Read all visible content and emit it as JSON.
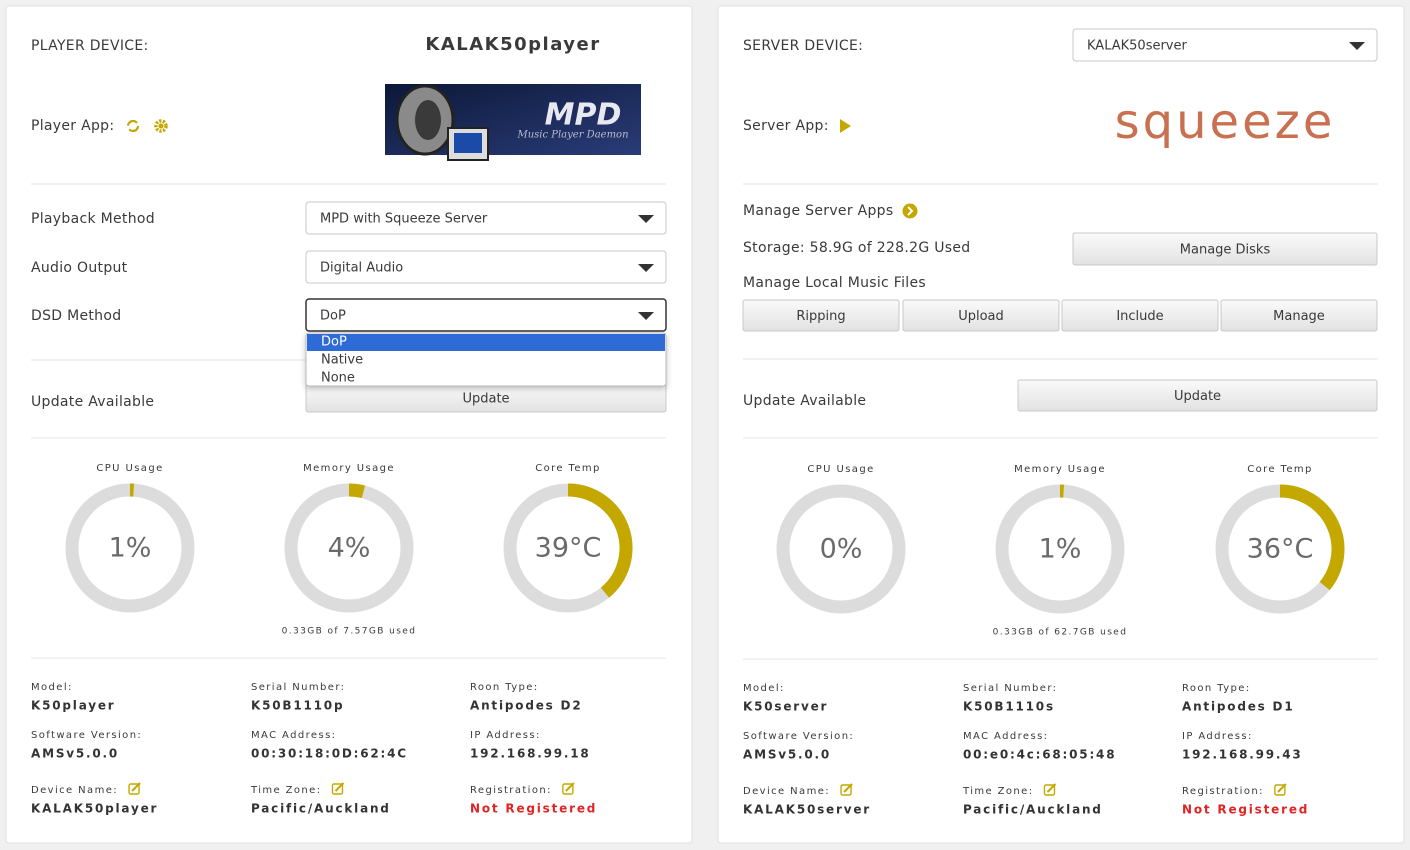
{
  "player": {
    "device_label": "PLAYER DEVICE:",
    "device_name": "KALAK50player",
    "app_label": "Player App:",
    "logo": {
      "title": "MPD",
      "subtitle": "Music Player Daemon"
    },
    "settings": [
      {
        "label": "Playback Method",
        "value": "MPD with Squeeze Server"
      },
      {
        "label": "Audio Output",
        "value": "Digital Audio"
      },
      {
        "label": "DSD Method",
        "value": "DoP"
      }
    ],
    "dropdown_options": [
      "DoP",
      "Native",
      "None"
    ],
    "update_label": "Update Available",
    "update_button": "Update",
    "gauges": [
      {
        "label": "CPU Usage",
        "value": 1,
        "value_label": "1%"
      },
      {
        "label": "Memory Usage",
        "value": 4,
        "value_label": "4%",
        "note": "0.33GB of 7.57GB used"
      },
      {
        "label": "Core Temp",
        "value": 39,
        "value_label": "39°C"
      }
    ],
    "info": [
      {
        "label": "Model:",
        "value": "K50player"
      },
      {
        "label": "Serial Number:",
        "value": "K50B1110p"
      },
      {
        "label": "Roon Type:",
        "value": "Antipodes D2"
      },
      {
        "label": "Software Version:",
        "value": "AMSv5.0.0"
      },
      {
        "label": "MAC Address:",
        "value": "00:30:18:0D:62:4C"
      },
      {
        "label": "IP Address:",
        "value": "192.168.99.18"
      },
      {
        "label": "Device Name:",
        "value": "KALAK50player"
      },
      {
        "label": "Time Zone:",
        "value": "Pacific/Auckland"
      },
      {
        "label": "Registration:",
        "value": "Not Registered"
      }
    ]
  },
  "server": {
    "device_label": "SERVER DEVICE:",
    "device_name": "KALAK50server",
    "app_label": "Server App:",
    "logo": {
      "title": "squeeze"
    },
    "manage_apps": "Manage Server Apps",
    "storage": "Storage: 58.9G of 228.2G Used",
    "manage_disks": "Manage Disks",
    "manage_files": "Manage Local Music Files",
    "file_buttons": [
      "Ripping",
      "Upload",
      "Include",
      "Manage"
    ],
    "update_label": "Update Available",
    "update_button": "Update",
    "gauges": [
      {
        "label": "CPU Usage",
        "value": 0,
        "value_label": "0%"
      },
      {
        "label": "Memory Usage",
        "value": 1,
        "value_label": "1%",
        "note": "0.33GB of 62.7GB used"
      },
      {
        "label": "Core Temp",
        "value": 36,
        "value_label": "36°C"
      }
    ],
    "info": [
      {
        "label": "Model:",
        "value": "K50server"
      },
      {
        "label": "Serial Number:",
        "value": "K50B1110s"
      },
      {
        "label": "Roon Type:",
        "value": "Antipodes D1"
      },
      {
        "label": "Software Version:",
        "value": "AMSv5.0.0"
      },
      {
        "label": "MAC Address:",
        "value": "00:e0:4c:68:05:48"
      },
      {
        "label": "IP Address:",
        "value": "192.168.99.43"
      },
      {
        "label": "Device Name:",
        "value": "KALAK50server"
      },
      {
        "label": "Time Zone:",
        "value": "Pacific/Auckland"
      },
      {
        "label": "Registration:",
        "value": "Not Registered"
      }
    ]
  }
}
